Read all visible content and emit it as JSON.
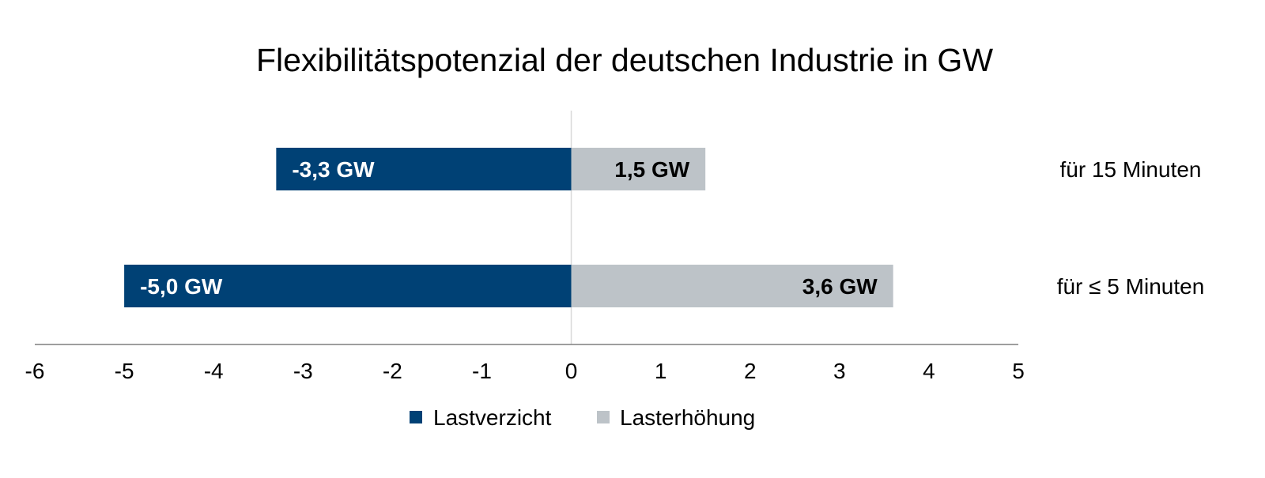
{
  "chart_data": {
    "type": "bar",
    "orientation": "horizontal",
    "stacked": "diverging",
    "title": "Flexibilitätspotenzial der deutschen Industrie in GW",
    "xlabel": "",
    "ylabel": "",
    "xlim": [
      -6,
      5
    ],
    "xticks": [
      "-6",
      "-5",
      "-4",
      "-3",
      "-2",
      "-1",
      "0",
      "1",
      "2",
      "3",
      "4",
      "5"
    ],
    "categories": [
      "für 15 Minuten",
      "für ≤ 5 Minuten"
    ],
    "series": [
      {
        "name": "Lastverzicht",
        "color": "#004175",
        "label_color": "#ffffff",
        "values": [
          -3.3,
          -5.0
        ],
        "data_labels": [
          "-3,3 GW",
          "-5,0 GW"
        ]
      },
      {
        "name": "Lasterhöhung",
        "color": "#bdc3c8",
        "label_color": "#000000",
        "values": [
          1.5,
          3.6
        ],
        "data_labels": [
          "1,5 GW",
          "3,6 GW"
        ]
      }
    ],
    "grid": false,
    "legend_position": "bottom"
  }
}
